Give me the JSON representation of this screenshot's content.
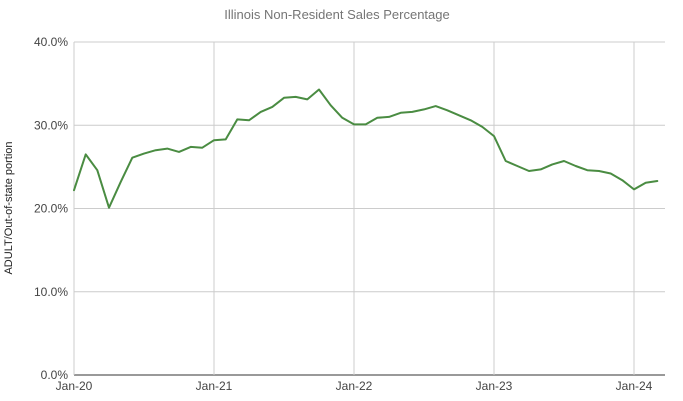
{
  "chart_data": {
    "type": "line",
    "title": "Illinois Non-Resident Sales Percentage",
    "xlabel": "",
    "ylabel": "ADULT/Out-of-state portion",
    "ylim": [
      0,
      40
    ],
    "grid": true,
    "legend": "none",
    "y_tick_labels": [
      "0.0%",
      "10.0%",
      "20.0%",
      "30.0%",
      "40.0%"
    ],
    "y_tick_values": [
      0,
      10,
      20,
      30,
      40
    ],
    "x_tick_labels": [
      "Jan-20",
      "Jan-21",
      "Jan-22",
      "Jan-23",
      "Jan-24"
    ],
    "x_tick_month_index": [
      0,
      12,
      24,
      36,
      48
    ],
    "categories": [
      "Jan-20",
      "Feb-20",
      "Mar-20",
      "Apr-20",
      "May-20",
      "Jun-20",
      "Jul-20",
      "Aug-20",
      "Sep-20",
      "Oct-20",
      "Nov-20",
      "Dec-20",
      "Jan-21",
      "Feb-21",
      "Mar-21",
      "Apr-21",
      "May-21",
      "Jun-21",
      "Jul-21",
      "Aug-21",
      "Sep-21",
      "Oct-21",
      "Nov-21",
      "Dec-21",
      "Jan-22",
      "Feb-22",
      "Mar-22",
      "Apr-22",
      "May-22",
      "Jun-22",
      "Jul-22",
      "Aug-22",
      "Sep-22",
      "Oct-22",
      "Nov-22",
      "Dec-22",
      "Jan-23",
      "Feb-23",
      "Mar-23",
      "Apr-23",
      "May-23",
      "Jun-23",
      "Jul-23",
      "Aug-23",
      "Sep-23",
      "Oct-23",
      "Nov-23",
      "Dec-23",
      "Jan-24",
      "Feb-24",
      "Mar-24"
    ],
    "values": [
      22.2,
      26.5,
      24.6,
      20.1,
      23.2,
      26.1,
      26.6,
      27.0,
      27.2,
      26.8,
      27.4,
      27.3,
      28.2,
      28.3,
      30.7,
      30.6,
      31.6,
      32.2,
      33.3,
      33.4,
      33.1,
      34.3,
      32.4,
      30.9,
      30.1,
      30.1,
      30.9,
      31.0,
      31.5,
      31.6,
      31.9,
      32.3,
      31.8,
      31.2,
      30.6,
      29.8,
      28.7,
      25.7,
      25.1,
      24.5,
      24.7,
      25.3,
      25.7,
      25.1,
      24.6,
      24.5,
      24.2,
      23.4,
      22.3,
      23.1,
      23.3
    ],
    "colors": {
      "series_line": "#4a8c42",
      "title_text": "#757575",
      "tick_text": "#444444",
      "axis_title_text": "#222222",
      "gridline": "#cccccc",
      "baseline": "#333333",
      "background": "#ffffff"
    }
  }
}
